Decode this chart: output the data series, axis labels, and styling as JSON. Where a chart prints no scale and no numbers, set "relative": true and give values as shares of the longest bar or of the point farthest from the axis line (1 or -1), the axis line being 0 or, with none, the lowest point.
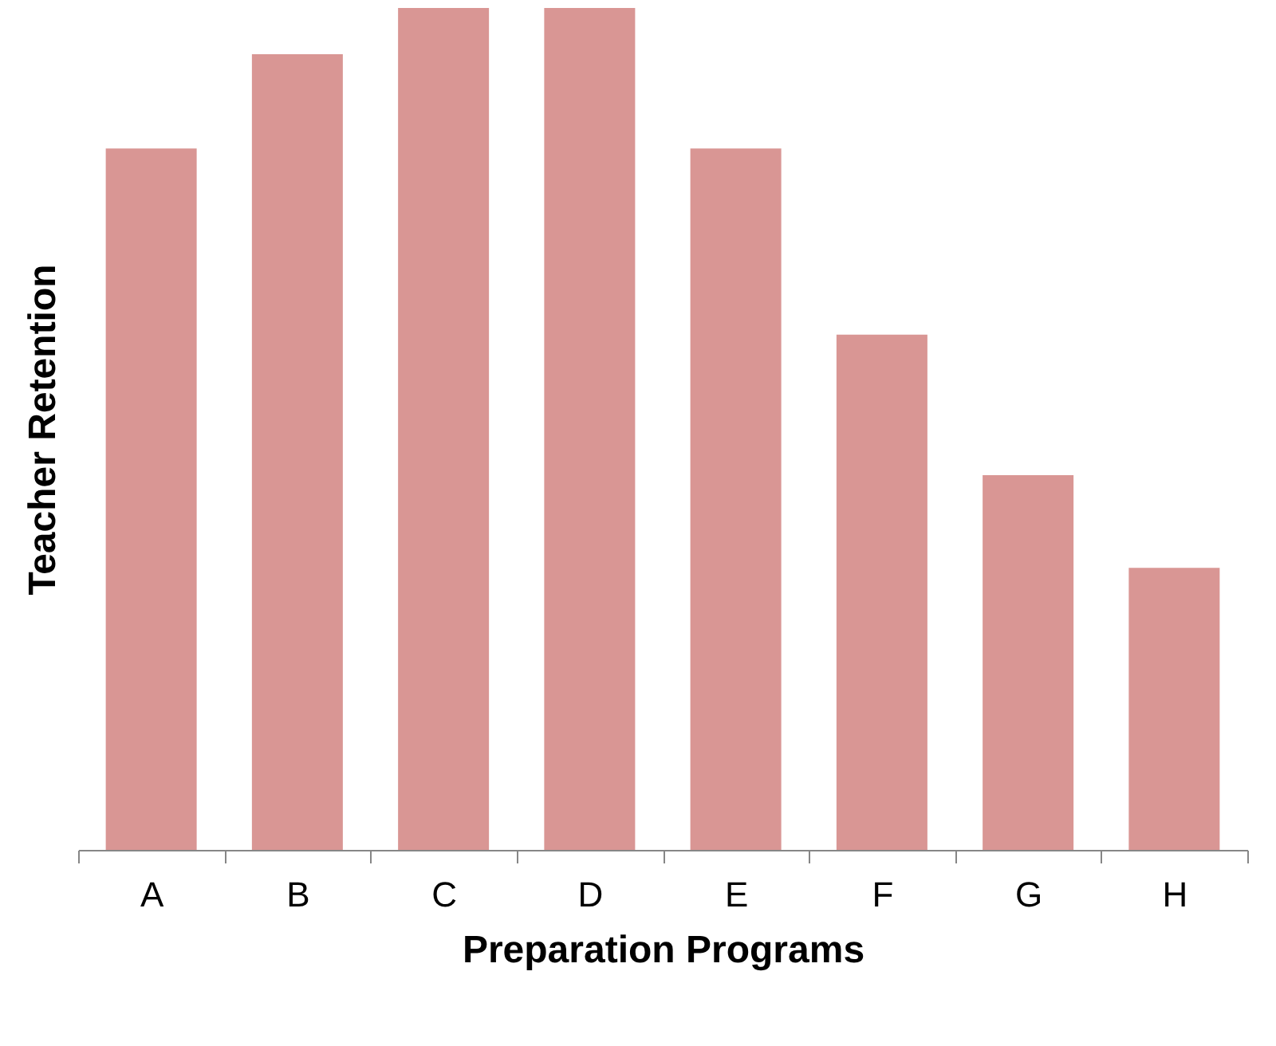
{
  "chart_data": {
    "type": "bar",
    "relative": true,
    "xlabel": "Preparation Programs",
    "ylabel": "Teacher Retention",
    "categories": [
      "A",
      "B",
      "C",
      "D",
      "E",
      "F",
      "G",
      "H"
    ],
    "values": [
      0.833,
      0.945,
      1,
      1,
      0.833,
      0.612,
      0.445,
      0.335
    ],
    "color": "#d99694",
    "grid": false
  }
}
